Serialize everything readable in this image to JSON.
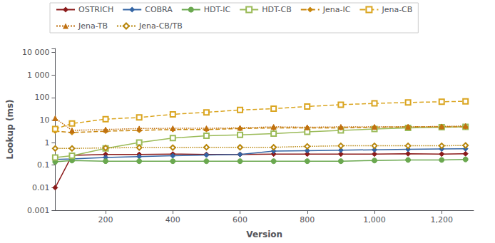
{
  "chart_data": {
    "type": "line",
    "x": [
      50,
      100,
      200,
      300,
      400,
      500,
      600,
      700,
      800,
      900,
      1000,
      1100,
      1200,
      1271
    ],
    "series": [
      {
        "name": "OSTRICH",
        "color": "#8B1A1A",
        "marker": "diamond",
        "line_style": "solid",
        "values": [
          0.01,
          0.27,
          0.3,
          0.3,
          0.31,
          0.3,
          0.3,
          0.31,
          0.31,
          0.31,
          0.31,
          0.32,
          0.31,
          0.32
        ]
      },
      {
        "name": "COBRA",
        "color": "#3465A4",
        "marker": "diamond",
        "line_style": "solid",
        "values": [
          0.18,
          0.19,
          0.22,
          0.24,
          0.26,
          0.28,
          0.3,
          0.42,
          0.44,
          0.46,
          0.48,
          0.5,
          0.52,
          0.53
        ]
      },
      {
        "name": "HDT-IC",
        "color": "#6AA84F",
        "marker": "circle",
        "line_style": "solid",
        "values": [
          0.14,
          0.16,
          0.15,
          0.15,
          0.15,
          0.15,
          0.15,
          0.15,
          0.15,
          0.15,
          0.16,
          0.17,
          0.17,
          0.18
        ]
      },
      {
        "name": "HDT-CB",
        "color": "#9BBB59",
        "marker": "square-open",
        "line_style": "solid",
        "values": [
          0.22,
          0.26,
          0.55,
          1.0,
          1.6,
          2.0,
          2.2,
          2.5,
          3.0,
          3.5,
          4.0,
          4.5,
          4.8,
          5.0
        ]
      },
      {
        "name": "Jena-IC",
        "color": "#C8860B",
        "marker": "diamond",
        "line_style": "dashed",
        "values": [
          3.2,
          2.8,
          3.2,
          3.5,
          3.8,
          3.8,
          4.2,
          4.5,
          4.5,
          4.5,
          4.8,
          5.0,
          5.0,
          5.0
        ]
      },
      {
        "name": "Jena-CB",
        "color": "#DAA520",
        "marker": "square-open",
        "line_style": "dashed",
        "values": [
          4.0,
          7.0,
          11.0,
          13.0,
          18.0,
          22.0,
          28.0,
          32.0,
          40.0,
          48.0,
          55.0,
          60.0,
          65.0,
          68.0
        ]
      },
      {
        "name": "Jena-TB",
        "color": "#C07010",
        "marker": "triangle",
        "line_style": "dotted",
        "values": [
          12.0,
          3.5,
          3.8,
          4.2,
          4.3,
          4.3,
          4.5,
          5.0,
          4.8,
          5.0,
          5.0,
          5.0,
          5.2,
          5.5
        ]
      },
      {
        "name": "Jena-CB/TB",
        "color": "#B8860B",
        "marker": "diamond-open",
        "line_style": "dotted",
        "values": [
          0.55,
          0.55,
          0.58,
          0.6,
          0.6,
          0.62,
          0.62,
          0.62,
          0.68,
          0.72,
          0.72,
          0.72,
          0.72,
          0.75
        ]
      }
    ],
    "x_label": "Version",
    "y_label": "Lookup (ms)",
    "xlim": [
      50,
      1295
    ],
    "ylim": [
      0.001,
      15000
    ],
    "xticks": [
      200,
      400,
      600,
      800,
      {
        "value": 1000,
        "label": "1,000"
      },
      {
        "value": 1200,
        "label": "1,200"
      }
    ],
    "yticks": [
      0.001,
      0.01,
      0.1,
      1,
      10,
      100,
      {
        "value": 1000,
        "label": "1 000"
      },
      {
        "value": 10000,
        "label": "10 000"
      }
    ],
    "log": "y",
    "grid": false,
    "legend": "upper left"
  }
}
